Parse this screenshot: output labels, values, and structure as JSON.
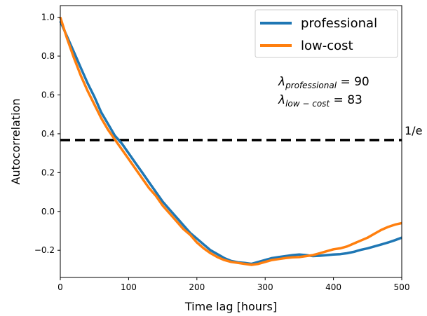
{
  "chart_data": {
    "type": "line",
    "xlabel": "Time lag [hours]",
    "ylabel": "Autocorrelation",
    "xlim": [
      0,
      500
    ],
    "ylim": [
      -0.34,
      1.06
    ],
    "xticks": [
      0,
      100,
      200,
      300,
      400,
      500
    ],
    "yticks": [
      -0.2,
      0.0,
      0.2,
      0.4,
      0.6,
      0.8,
      1.0
    ],
    "ytick_labels": [
      "−0.2",
      "0.0",
      "0.2",
      "0.4",
      "0.6",
      "0.8",
      "1.0"
    ],
    "grid": false,
    "legend_position": "top-right",
    "series": [
      {
        "name": "professional",
        "color": "#1f77b4",
        "x": [
          0,
          10,
          20,
          30,
          40,
          50,
          60,
          70,
          80,
          90,
          100,
          110,
          120,
          130,
          140,
          150,
          160,
          170,
          180,
          190,
          200,
          210,
          220,
          230,
          240,
          250,
          260,
          270,
          280,
          290,
          300,
          310,
          320,
          330,
          340,
          350,
          360,
          370,
          380,
          390,
          400,
          410,
          420,
          430,
          440,
          450,
          460,
          470,
          480,
          490,
          500
        ],
        "y": [
          0.98,
          0.9,
          0.82,
          0.74,
          0.66,
          0.59,
          0.51,
          0.45,
          0.39,
          0.35,
          0.3,
          0.25,
          0.2,
          0.15,
          0.1,
          0.05,
          0.01,
          -0.03,
          -0.07,
          -0.11,
          -0.14,
          -0.17,
          -0.2,
          -0.22,
          -0.24,
          -0.255,
          -0.262,
          -0.265,
          -0.27,
          -0.26,
          -0.25,
          -0.24,
          -0.235,
          -0.23,
          -0.225,
          -0.222,
          -0.225,
          -0.23,
          -0.228,
          -0.225,
          -0.222,
          -0.22,
          -0.215,
          -0.208,
          -0.198,
          -0.19,
          -0.18,
          -0.17,
          -0.16,
          -0.148,
          -0.135
        ]
      },
      {
        "name": "low-cost",
        "color": "#ff7f0e",
        "x": [
          0,
          10,
          20,
          30,
          40,
          50,
          60,
          70,
          80,
          90,
          100,
          110,
          120,
          130,
          140,
          150,
          160,
          170,
          180,
          190,
          200,
          210,
          220,
          230,
          240,
          250,
          260,
          270,
          280,
          290,
          300,
          310,
          320,
          330,
          340,
          350,
          360,
          370,
          380,
          390,
          400,
          410,
          420,
          430,
          440,
          450,
          460,
          470,
          480,
          490,
          500
        ],
        "y": [
          1.0,
          0.89,
          0.79,
          0.7,
          0.62,
          0.55,
          0.48,
          0.42,
          0.37,
          0.32,
          0.27,
          0.22,
          0.17,
          0.12,
          0.08,
          0.03,
          -0.01,
          -0.05,
          -0.09,
          -0.12,
          -0.16,
          -0.19,
          -0.215,
          -0.235,
          -0.25,
          -0.26,
          -0.265,
          -0.27,
          -0.275,
          -0.27,
          -0.26,
          -0.25,
          -0.245,
          -0.24,
          -0.236,
          -0.235,
          -0.23,
          -0.225,
          -0.215,
          -0.205,
          -0.195,
          -0.19,
          -0.18,
          -0.165,
          -0.15,
          -0.135,
          -0.115,
          -0.095,
          -0.08,
          -0.068,
          -0.06
        ]
      }
    ],
    "threshold": {
      "y": 0.367879,
      "label": "1/e",
      "color": "#000000",
      "style": "dashed"
    },
    "annotations": [
      {
        "symbol": "λ",
        "subscript": "professional",
        "text": " = 90"
      },
      {
        "symbol": "λ",
        "subscript": "low − cost",
        "text": " = 83"
      }
    ]
  }
}
